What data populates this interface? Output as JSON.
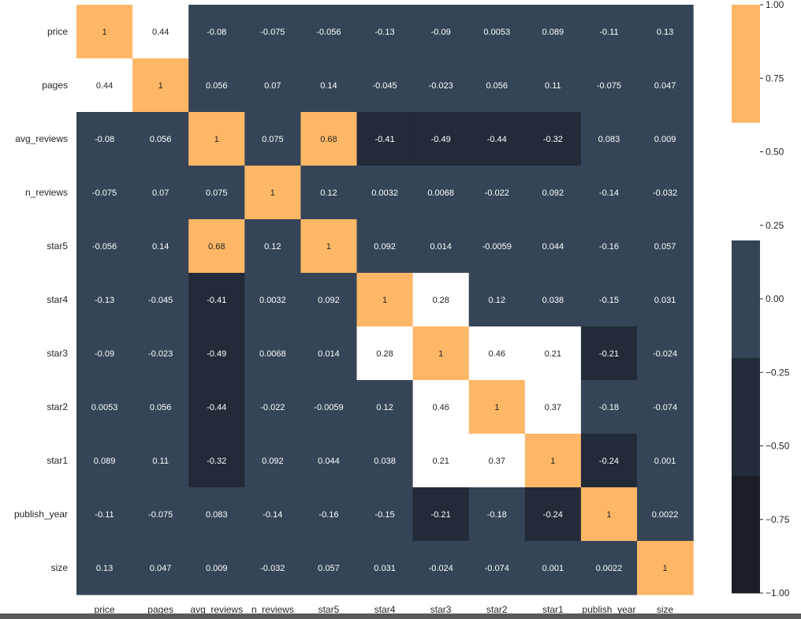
{
  "chart_data": {
    "type": "heatmap",
    "x_labels": [
      "price",
      "pages",
      "avg_reviews",
      "n_reviews",
      "star5",
      "star4",
      "star3",
      "star2",
      "star1",
      "publish_year",
      "size"
    ],
    "y_labels": [
      "price",
      "pages",
      "avg_reviews",
      "n_reviews",
      "star5",
      "star4",
      "star3",
      "star2",
      "star1",
      "publish_year",
      "size"
    ],
    "values": [
      [
        "1",
        "0.44",
        "-0.08",
        "-0.075",
        "-0.056",
        "-0.13",
        "-0.09",
        "0.0053",
        "0.089",
        "-0.11",
        "0.13"
      ],
      [
        "0.44",
        "1",
        "0.056",
        "0.07",
        "0.14",
        "-0.045",
        "-0.023",
        "0.056",
        "0.11",
        "-0.075",
        "0.047"
      ],
      [
        "-0.08",
        "0.056",
        "1",
        "0.075",
        "0.68",
        "-0.41",
        "-0.49",
        "-0.44",
        "-0.32",
        "0.083",
        "0.009"
      ],
      [
        "-0.075",
        "0.07",
        "0.075",
        "1",
        "0.12",
        "0.0032",
        "0.0068",
        "-0.022",
        "0.092",
        "-0.14",
        "-0.032"
      ],
      [
        "-0.056",
        "0.14",
        "0.68",
        "0.12",
        "1",
        "0.092",
        "0.014",
        "-0.0059",
        "0.044",
        "-0.16",
        "0.057"
      ],
      [
        "-0.13",
        "-0.045",
        "-0.41",
        "0.0032",
        "0.092",
        "1",
        "0.28",
        "0.12",
        "0.038",
        "-0.15",
        "0.031"
      ],
      [
        "-0.09",
        "-0.023",
        "-0.49",
        "0.0068",
        "0.014",
        "0.28",
        "1",
        "0.46",
        "0.21",
        "-0.21",
        "-0.024"
      ],
      [
        "0.0053",
        "0.056",
        "-0.44",
        "-0.022",
        "-0.0059",
        "0.12",
        "0.46",
        "1",
        "0.37",
        "-0.18",
        "-0.074"
      ],
      [
        "0.089",
        "0.11",
        "-0.32",
        "0.092",
        "0.044",
        "0.038",
        "0.21",
        "0.37",
        "1",
        "-0.24",
        "0.001"
      ],
      [
        "-0.11",
        "-0.075",
        "0.083",
        "-0.14",
        "-0.16",
        "-0.15",
        "-0.21",
        "-0.18",
        "-0.24",
        "1",
        "0.0022"
      ],
      [
        "0.13",
        "0.047",
        "0.009",
        "-0.032",
        "0.057",
        "0.031",
        "-0.024",
        "-0.074",
        "0.001",
        "0.0022",
        "1"
      ]
    ],
    "colorbar": {
      "range": [
        -1.0,
        1.0
      ],
      "ticks": [
        "1.00",
        "0.75",
        "0.50",
        "0.25",
        "0.00",
        "−0.25",
        "−0.50",
        "−0.75",
        "−1.00"
      ],
      "bins": [
        {
          "from": -1.0,
          "to": -0.6,
          "color": "#1b1e25"
        },
        {
          "from": -0.6,
          "to": -0.2,
          "color": "#232b38"
        },
        {
          "from": -0.2,
          "to": 0.2,
          "color": "#354456"
        },
        {
          "from": 0.2,
          "to": 0.6,
          "color": "#ffffff"
        },
        {
          "from": 0.6,
          "to": 1.0,
          "color": "#fdb766"
        }
      ]
    },
    "grid": false,
    "title": "",
    "xlabel": "",
    "ylabel": ""
  }
}
